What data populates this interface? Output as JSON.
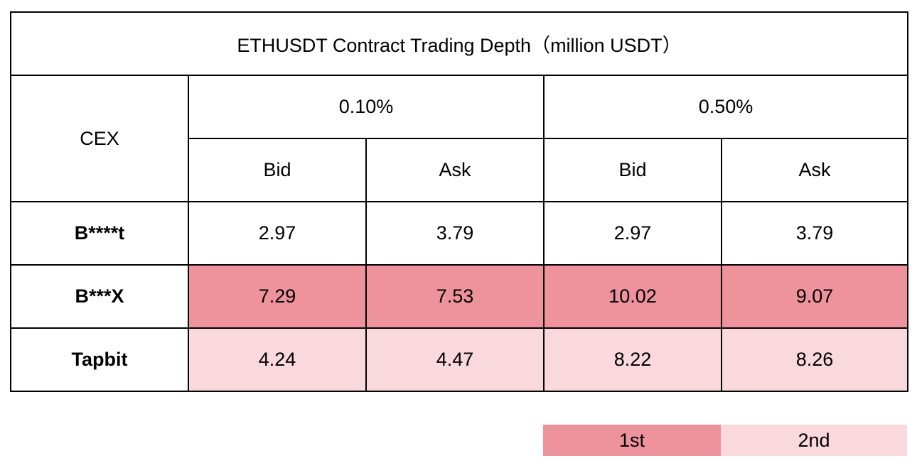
{
  "title": "ETHUSDT Contract Trading Depth（million USDT）",
  "header": {
    "cex": "CEX",
    "groups": [
      "0.10%",
      "0.50%"
    ],
    "sub": [
      "Bid",
      "Ask",
      "Bid",
      "Ask"
    ]
  },
  "rows": [
    {
      "name": "B****t",
      "values": [
        "2.97",
        "3.79",
        "2.97",
        "3.79"
      ],
      "rank": ""
    },
    {
      "name": "B***X",
      "values": [
        "7.29",
        "7.53",
        "10.02",
        "9.07"
      ],
      "rank": "1st"
    },
    {
      "name": "Tapbit",
      "values": [
        "4.24",
        "4.47",
        "8.22",
        "8.26"
      ],
      "rank": "2nd"
    }
  ],
  "legend": {
    "first": {
      "label": "1st",
      "color": "#ee929c"
    },
    "second": {
      "label": "2nd",
      "color": "#f9d8de"
    }
  }
}
